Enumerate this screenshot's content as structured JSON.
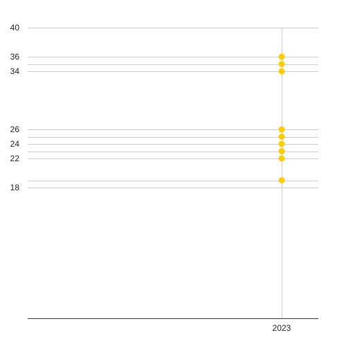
{
  "chart_data": {
    "type": "scatter",
    "title": "",
    "xlabel": "",
    "ylabel": "",
    "x_categories": [
      "2023"
    ],
    "series": [
      {
        "color": "#FFCC00",
        "points": [
          {
            "x": "2023",
            "y": 36
          },
          {
            "x": "2023",
            "y": 35
          },
          {
            "x": "2023",
            "y": 34
          },
          {
            "x": "2023",
            "y": 26
          },
          {
            "x": "2023",
            "y": 25
          },
          {
            "x": "2023",
            "y": 24
          },
          {
            "x": "2023",
            "y": 23
          },
          {
            "x": "2023",
            "y": 22
          },
          {
            "x": "2023",
            "y": 19
          }
        ]
      }
    ],
    "y_tick_labels": [
      "40",
      "36",
      "34",
      "26",
      "24",
      "22",
      "18"
    ],
    "ylim": [
      0,
      40
    ],
    "grid": true,
    "legend": "none",
    "colors": {
      "point": "#FFCC00",
      "grid": "#CCCCCC",
      "axis": "#333333",
      "label": "#222222"
    }
  }
}
